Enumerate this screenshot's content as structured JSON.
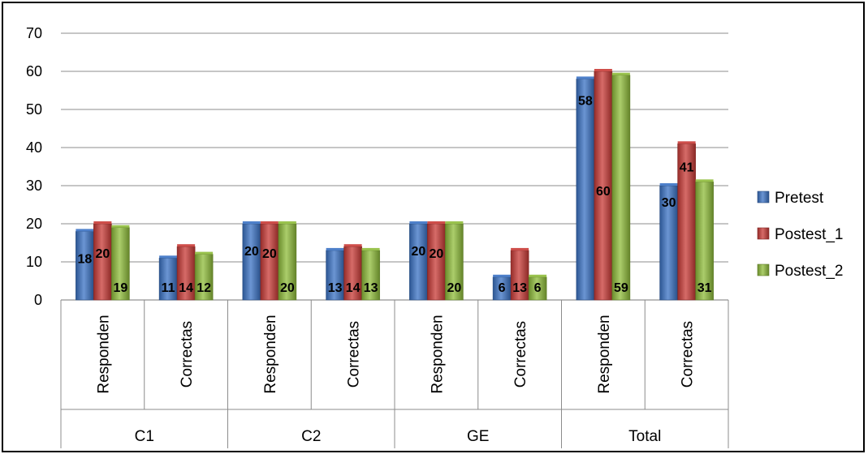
{
  "chart_data": {
    "type": "bar",
    "groups": [
      {
        "label": "C1",
        "categories": [
          "Responden",
          "Correctas"
        ]
      },
      {
        "label": "C2",
        "categories": [
          "Responden",
          "Correctas"
        ]
      },
      {
        "label": "GE",
        "categories": [
          "Responden",
          "Correctas"
        ]
      },
      {
        "label": "Total",
        "categories": [
          "Responden",
          "Correctas"
        ]
      }
    ],
    "categories": [
      "Responden",
      "Correctas",
      "Responden",
      "Correctas",
      "Responden",
      "Correctas",
      "Responden",
      "Correctas"
    ],
    "series": [
      {
        "name": "Pretest",
        "color": "#3a72c4",
        "values": [
          18,
          11,
          20,
          13,
          20,
          6,
          58,
          30
        ]
      },
      {
        "name": "Postest_1",
        "color": "#c83a36",
        "values": [
          20,
          14,
          20,
          14,
          20,
          13,
          60,
          41
        ]
      },
      {
        "name": "Postest_2",
        "color": "#8fbc3a",
        "values": [
          19,
          12,
          20,
          13,
          20,
          6,
          59,
          31
        ]
      }
    ],
    "ylim": [
      0,
      70
    ],
    "yticks": [
      0,
      10,
      20,
      30,
      40,
      50,
      60,
      70
    ],
    "grid": true,
    "legend_position": "right",
    "data_labels": true
  }
}
